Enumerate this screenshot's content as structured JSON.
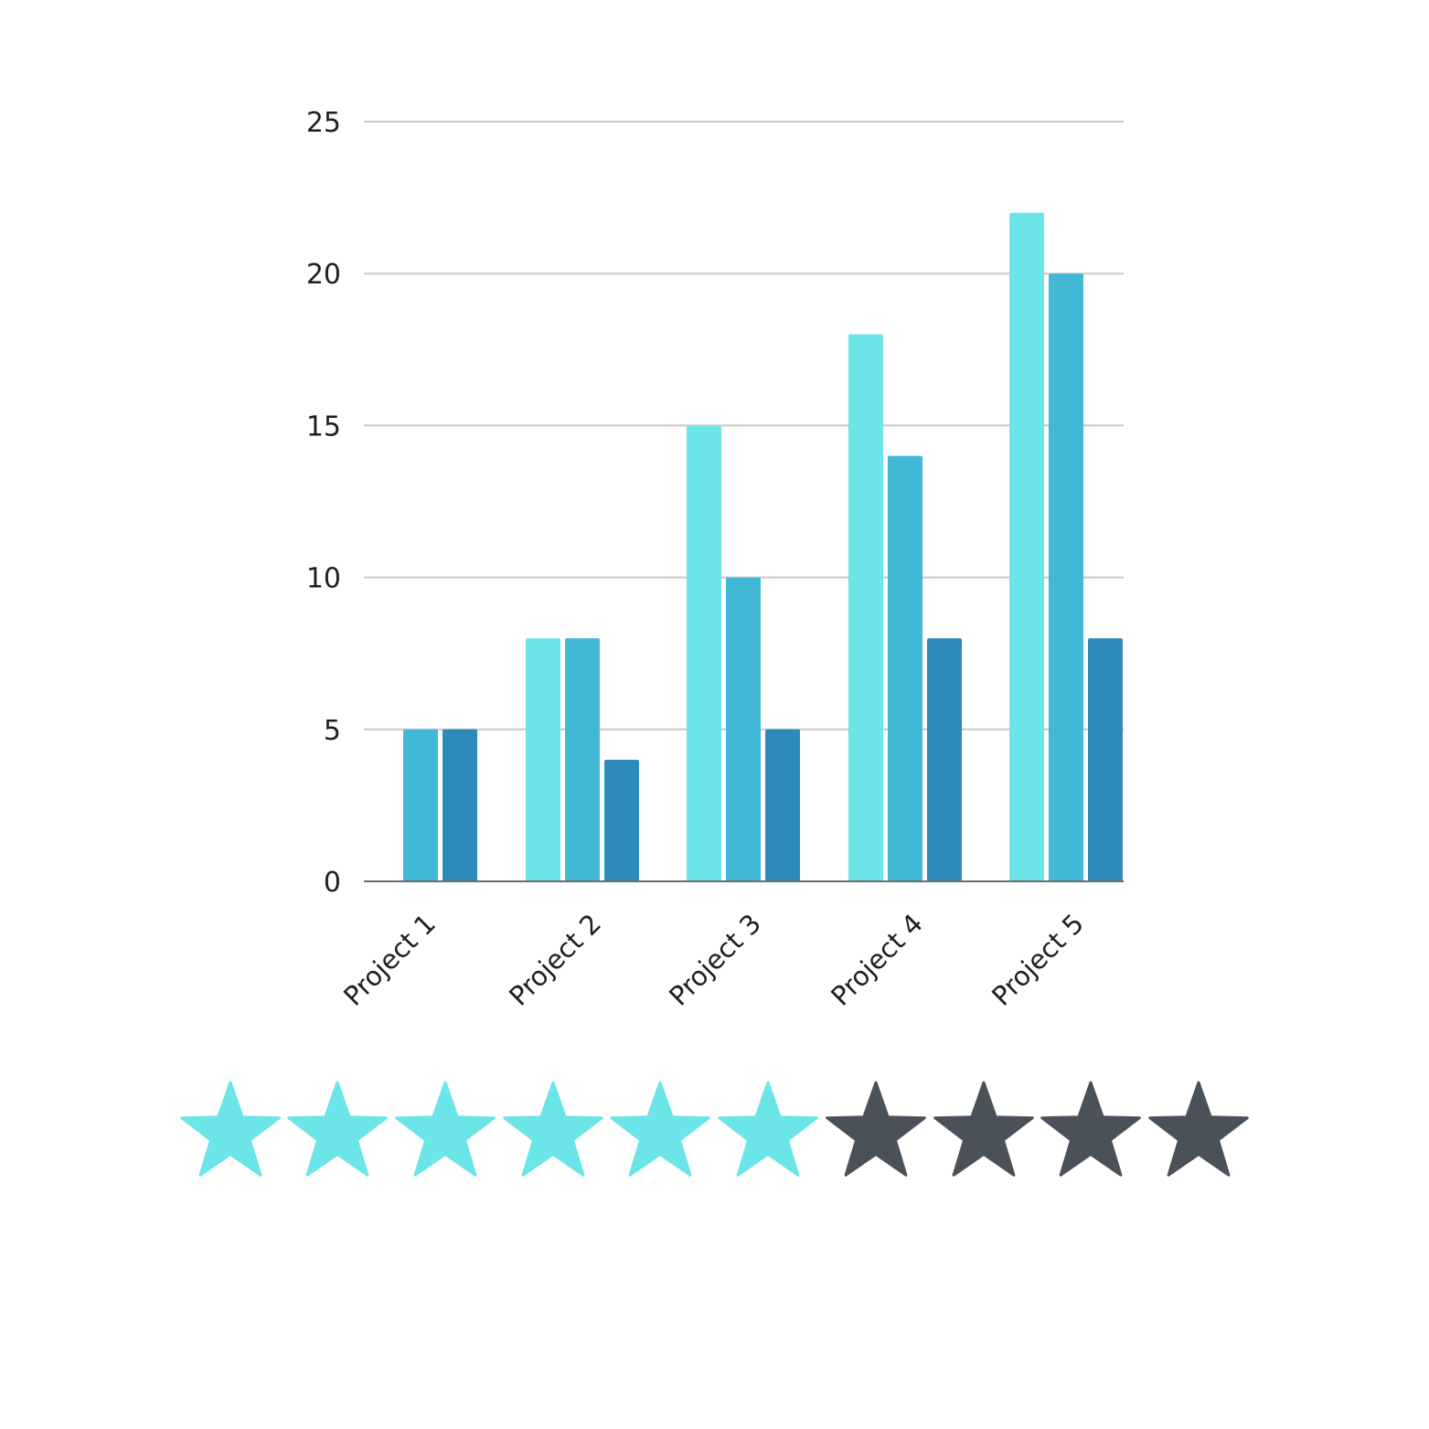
{
  "chart_data": {
    "type": "bar",
    "title": "",
    "xlabel": "",
    "ylabel": "",
    "categories": [
      "Project 1",
      "Project 2",
      "Project 3",
      "Project 4",
      "Project 5"
    ],
    "series": [
      {
        "color": "#6ce5e8",
        "values": [
          0,
          8,
          15,
          18,
          22
        ]
      },
      {
        "color": "#41b8d5",
        "values": [
          5,
          8,
          10,
          14,
          20
        ]
      },
      {
        "color": "#2d8bba",
        "values": [
          5,
          4,
          5,
          8,
          8
        ]
      }
    ],
    "ylim": [
      0,
      25
    ],
    "yticks": [
      0,
      5,
      10,
      15,
      20,
      25
    ],
    "grid": true,
    "legend": "none"
  },
  "rating": {
    "value": 6,
    "max": 10,
    "filled_color": "#6ce5e8",
    "empty_color": "#4a5159",
    "icon": "star-icon"
  }
}
